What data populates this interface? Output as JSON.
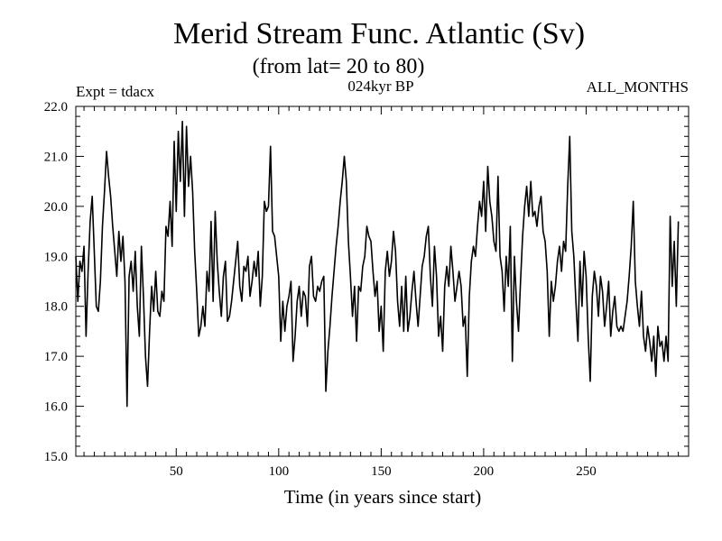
{
  "chart_data": {
    "type": "line",
    "title": "Merid Stream Func. Atlantic (Sv)",
    "subtitle": "(from lat= 20 to 80)",
    "experiment": "Expt = tdacx",
    "period": "024kyr BP",
    "months": "ALL_MONTHS",
    "xlabel": "Time (in years since start)",
    "ylabel": "",
    "xlim": [
      1,
      300
    ],
    "ylim": [
      15.0,
      22.0
    ],
    "x_ticks": [
      50,
      100,
      150,
      200,
      250
    ],
    "x_tick_labels": [
      "50",
      "100",
      "150",
      "200",
      "250"
    ],
    "y_ticks": [
      15,
      16,
      17,
      18,
      19,
      20,
      21,
      22
    ],
    "y_tick_labels": [
      "15.0",
      "16.0",
      "17.0",
      "18.0",
      "19.0",
      "20.0",
      "21.0",
      "22.0"
    ],
    "grid": false,
    "series": [
      {
        "name": "Merid Stream Func. Atlantic",
        "x_start": 1,
        "x_step": 1,
        "values": [
          19.0,
          18.1,
          18.9,
          18.7,
          19.2,
          17.4,
          18.7,
          19.7,
          20.2,
          19.1,
          18.0,
          17.9,
          18.5,
          19.6,
          20.3,
          21.1,
          20.6,
          20.2,
          19.6,
          19.1,
          18.6,
          19.5,
          18.9,
          19.4,
          18.5,
          16.0,
          18.6,
          18.9,
          18.3,
          19.1,
          18.0,
          17.4,
          19.2,
          18.2,
          17.0,
          16.4,
          17.5,
          18.4,
          17.9,
          18.7,
          17.9,
          17.8,
          18.3,
          18.1,
          19.6,
          19.4,
          20.1,
          19.2,
          21.3,
          19.9,
          21.5,
          20.5,
          21.7,
          19.8,
          21.6,
          20.4,
          21.0,
          20.3,
          19.1,
          18.3,
          17.4,
          17.6,
          18.0,
          17.6,
          18.7,
          18.3,
          19.7,
          18.1,
          19.9,
          18.9,
          18.3,
          17.8,
          18.6,
          18.9,
          17.7,
          17.8,
          18.1,
          18.5,
          18.9,
          19.3,
          18.4,
          18.1,
          18.8,
          18.7,
          19.0,
          18.2,
          18.5,
          18.9,
          18.6,
          19.1,
          18.0,
          18.6,
          20.1,
          19.9,
          20.0,
          21.2,
          19.5,
          19.4,
          19.0,
          18.6,
          17.3,
          18.1,
          17.5,
          18.0,
          18.2,
          18.5,
          16.9,
          17.4,
          18.1,
          18.4,
          17.8,
          18.3,
          18.2,
          17.6,
          18.8,
          19.0,
          18.2,
          18.1,
          18.4,
          18.3,
          18.5,
          18.6,
          16.3,
          17.1,
          17.6,
          18.2,
          18.7,
          19.2,
          19.6,
          20.1,
          20.5,
          21.0,
          20.5,
          19.3,
          18.6,
          17.8,
          18.4,
          17.3,
          18.4,
          18.3,
          18.8,
          19.0,
          19.6,
          19.4,
          19.3,
          18.7,
          18.2,
          18.5,
          17.5,
          18.0,
          17.1,
          18.7,
          19.1,
          18.6,
          18.9,
          19.5,
          19.1,
          18.1,
          17.6,
          18.4,
          17.5,
          18.6,
          17.5,
          17.8,
          18.3,
          18.7,
          18.1,
          17.6,
          18.2,
          18.8,
          19.0,
          19.4,
          19.6,
          18.6,
          18.0,
          19.2,
          18.6,
          17.4,
          17.8,
          17.1,
          18.4,
          18.8,
          18.4,
          19.2,
          18.7,
          18.1,
          18.4,
          18.7,
          18.4,
          17.6,
          17.8,
          16.6,
          18.2,
          18.9,
          19.2,
          19.0,
          19.6,
          20.1,
          19.8,
          20.5,
          19.5,
          20.8,
          20.1,
          19.8,
          19.3,
          19.1,
          20.6,
          19.0,
          18.7,
          17.9,
          19.0,
          18.4,
          19.6,
          16.9,
          19.0,
          18.1,
          17.5,
          18.5,
          19.4,
          20.0,
          20.4,
          19.8,
          20.5,
          19.8,
          19.9,
          19.6,
          20.0,
          20.2,
          19.5,
          19.3,
          18.7,
          17.4,
          18.5,
          18.1,
          18.4,
          18.9,
          19.2,
          18.7,
          19.3,
          19.1,
          20.4,
          21.4,
          19.5,
          19.0,
          18.1,
          17.3,
          18.9,
          18.0,
          19.1,
          18.6,
          17.4,
          16.5,
          18.2,
          18.7,
          18.4,
          17.8,
          18.6,
          18.3,
          17.6,
          18.0,
          18.5,
          17.4,
          17.9,
          18.2,
          17.6,
          17.5,
          17.6,
          17.5,
          17.8,
          18.1,
          18.6,
          19.2,
          20.1,
          18.5,
          18.0,
          17.6,
          18.3,
          17.4,
          17.1,
          17.6,
          17.3,
          16.9,
          17.4,
          16.6,
          17.6,
          17.2,
          17.3,
          16.9,
          17.4,
          16.9,
          19.8,
          18.4,
          19.3,
          18.0,
          19.7
        ]
      }
    ]
  }
}
